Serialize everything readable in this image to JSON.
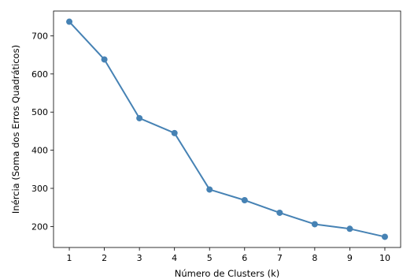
{
  "chart_data": {
    "type": "line",
    "xlabel": "Número de Clusters (k)",
    "ylabel": "Inércia (Soma dos Erros Quadráticos)",
    "x": [
      1,
      2,
      3,
      4,
      5,
      6,
      7,
      8,
      9,
      10
    ],
    "series": [
      {
        "values": [
          737,
          638,
          484,
          445,
          297,
          269,
          236,
          206,
          194,
          173
        ],
        "color": "#4682b4"
      }
    ],
    "xticks": [
      1,
      2,
      3,
      4,
      5,
      6,
      7,
      8,
      9,
      10
    ],
    "yticks": [
      200,
      300,
      400,
      500,
      600,
      700
    ],
    "xlim": [
      0.55,
      10.45
    ],
    "ylim": [
      145,
      765
    ],
    "grid": false,
    "legend": "none"
  }
}
